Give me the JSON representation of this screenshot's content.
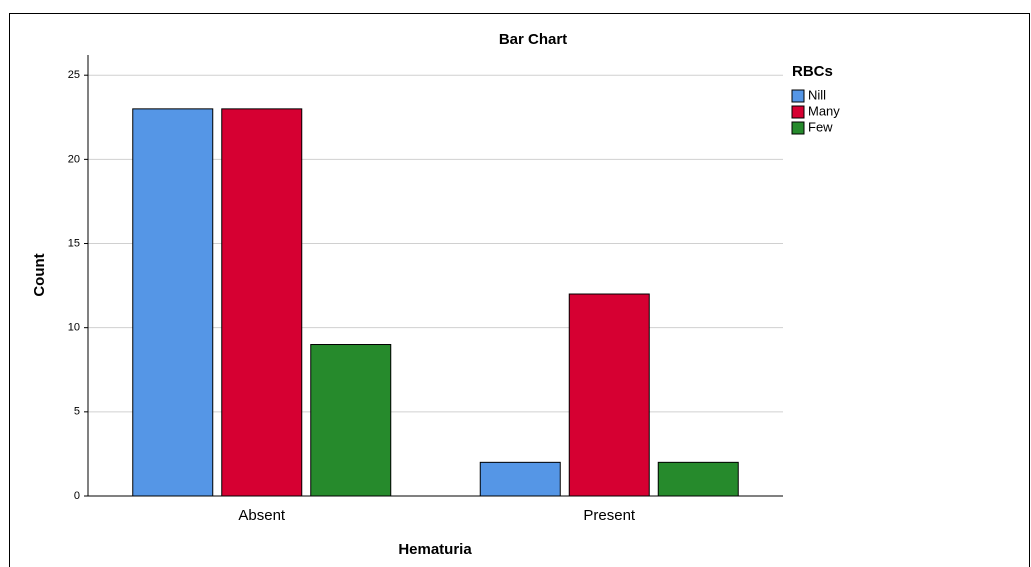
{
  "chart_data": {
    "type": "bar",
    "title": "Bar Chart",
    "x_label": "Hematuria",
    "y_label": "Count",
    "categories": [
      "Absent",
      "Present"
    ],
    "legend_title": "RBCs",
    "series": [
      {
        "name": "Nill",
        "color": "#5596e6",
        "values": [
          23,
          2
        ]
      },
      {
        "name": "Many",
        "color": "#d60032",
        "values": [
          23,
          12
        ]
      },
      {
        "name": "Few",
        "color": "#268a2c",
        "values": [
          9,
          2
        ]
      }
    ],
    "ylim": [
      0,
      26.2
    ],
    "yticks": [
      0,
      5,
      10,
      15,
      20,
      25
    ],
    "grid": true,
    "legend": "right"
  }
}
